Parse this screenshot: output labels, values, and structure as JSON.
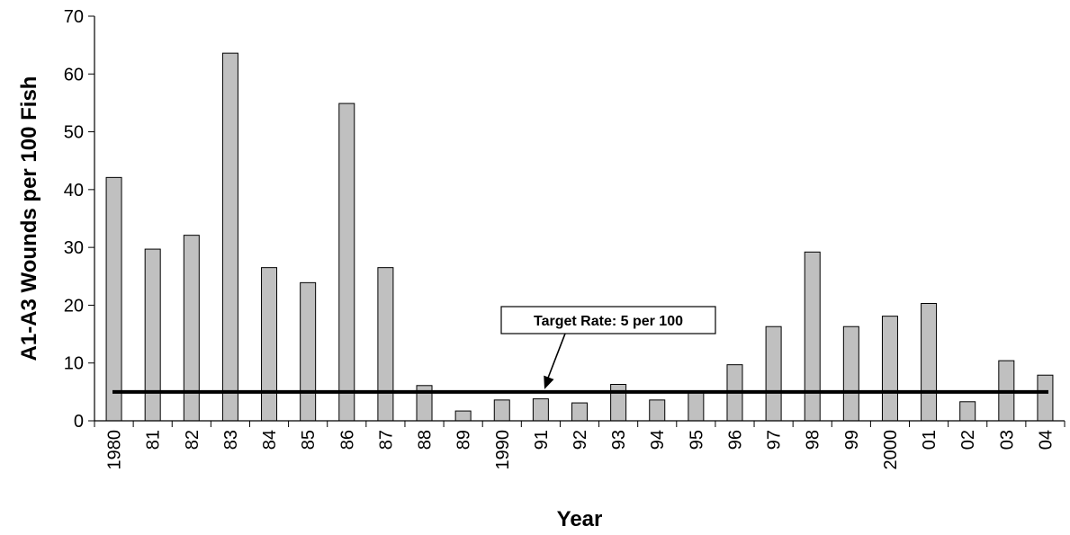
{
  "chart_data": {
    "type": "bar",
    "categories": [
      "1980",
      "81",
      "82",
      "83",
      "84",
      "85",
      "86",
      "87",
      "88",
      "89",
      "1990",
      "91",
      "92",
      "93",
      "94",
      "95",
      "96",
      "97",
      "98",
      "99",
      "2000",
      "01",
      "02",
      "03",
      "04"
    ],
    "values": [
      42.1,
      29.7,
      32.1,
      63.6,
      26.5,
      23.9,
      54.9,
      26.5,
      6.1,
      1.7,
      3.6,
      3.8,
      3.1,
      6.3,
      3.6,
      5.0,
      9.7,
      16.3,
      29.2,
      16.3,
      18.1,
      20.3,
      3.3,
      10.4,
      7.9
    ],
    "xlabel": "Year",
    "ylabel": "A1-A3 Wounds per 100 Fish",
    "ylim": [
      0,
      70
    ],
    "yticks": [
      0,
      10,
      20,
      30,
      40,
      50,
      60,
      70
    ],
    "grid": false,
    "target_line": {
      "value": 5,
      "label": "Target Rate: 5 per 100"
    },
    "colors": {
      "bar_fill": "#c0c0c0",
      "bar_stroke": "#000000",
      "target_line": "#000000"
    }
  }
}
